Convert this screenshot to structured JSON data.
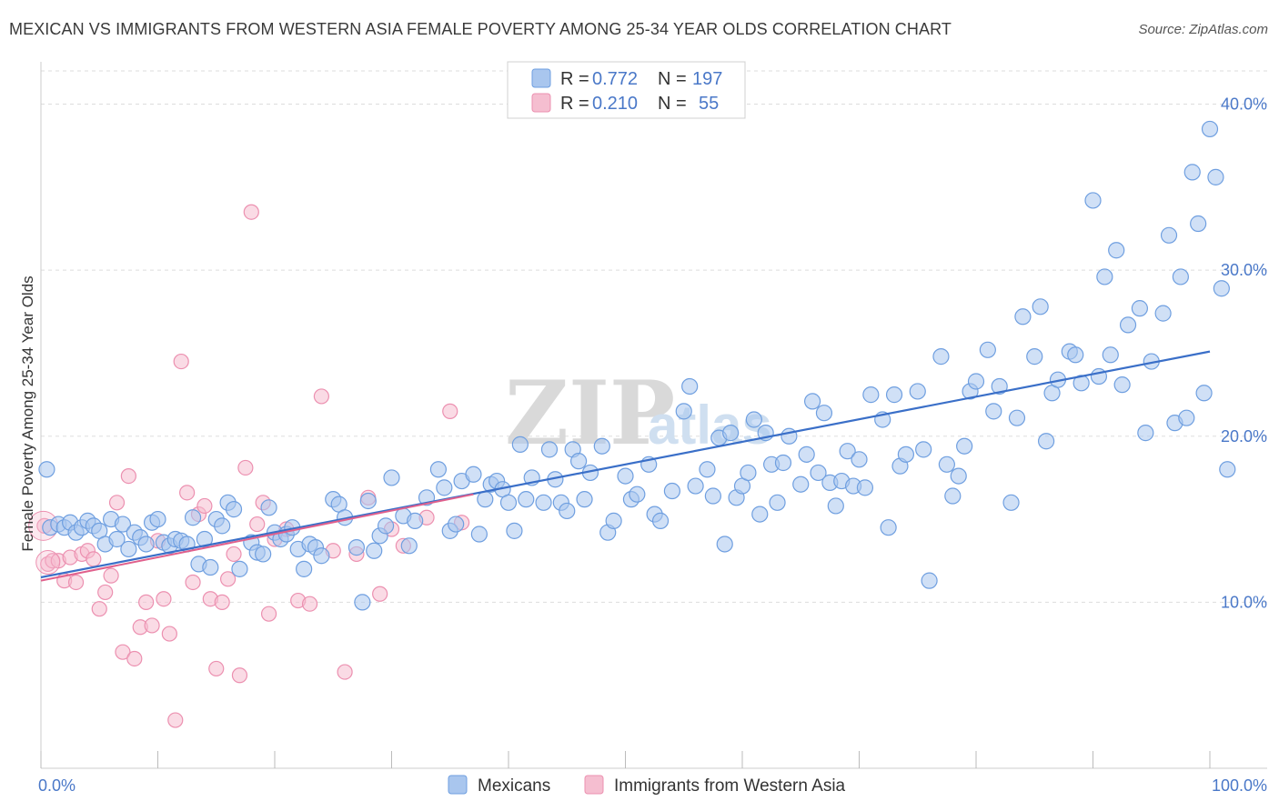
{
  "title": "MEXICAN VS IMMIGRANTS FROM WESTERN ASIA FEMALE POVERTY AMONG 25-34 YEAR OLDS CORRELATION CHART",
  "source": "Source: ZipAtlas.com",
  "watermark": {
    "part1": "ZIP",
    "part2": "atlas"
  },
  "colors": {
    "mexicans_fill": "#a9c6ee",
    "mexicans_stroke": "#6f9fe0",
    "mexicans_line": "#3a6fc8",
    "immigrants_fill": "#f5bed0",
    "immigrants_stroke": "#ec90b0",
    "immigrants_line": "#e0608c",
    "tick": "#4a78c8",
    "grid": "#dddddd"
  },
  "legend": {
    "rows": [
      {
        "r_label": "R = ",
        "r_value": "0.772",
        "n_label": "N = ",
        "n_value": "197"
      },
      {
        "r_label": "R = ",
        "r_value": "0.210",
        "n_label": "N = ",
        "n_value": "55"
      }
    ]
  },
  "bottom_legend": {
    "mexicans": "Mexicans",
    "immigrants": "Immigrants from Western Asia"
  },
  "chart_data": {
    "type": "scatter",
    "title": "MEXICAN VS IMMIGRANTS FROM WESTERN ASIA FEMALE POVERTY AMONG 25-34 YEAR OLDS CORRELATION CHART",
    "xlabel": "",
    "ylabel": "Female Poverty Among 25-34 Year Olds",
    "xlim": [
      0,
      100
    ],
    "ylim": [
      0,
      42
    ],
    "x_tick_labels": [
      "0.0%",
      "100.0%"
    ],
    "y_ticks": [
      10,
      20,
      30,
      40
    ],
    "y_tick_labels": [
      "10.0%",
      "20.0%",
      "30.0%",
      "40.0%"
    ],
    "grid": true,
    "legend_position": "top-center",
    "series": [
      {
        "name": "Mexicans",
        "r": 0.772,
        "n": 197,
        "trend": [
          [
            0,
            11.5
          ],
          [
            100,
            25.1
          ]
        ],
        "points": [
          [
            0.5,
            18
          ],
          [
            0.8,
            14.5
          ],
          [
            1.5,
            14.7
          ],
          [
            2,
            14.5
          ],
          [
            2.5,
            14.8
          ],
          [
            3,
            14.2
          ],
          [
            3.5,
            14.5
          ],
          [
            4,
            14.9
          ],
          [
            4.5,
            14.6
          ],
          [
            5,
            14.3
          ],
          [
            5.5,
            13.5
          ],
          [
            6,
            15
          ],
          [
            6.5,
            13.8
          ],
          [
            7,
            14.7
          ],
          [
            7.5,
            13.2
          ],
          [
            8,
            14.2
          ],
          [
            8.5,
            13.9
          ],
          [
            9,
            13.5
          ],
          [
            9.5,
            14.8
          ],
          [
            10,
            15
          ],
          [
            10.5,
            13.6
          ],
          [
            11,
            13.4
          ],
          [
            11.5,
            13.8
          ],
          [
            12,
            13.7
          ],
          [
            12.5,
            13.5
          ],
          [
            13,
            15.1
          ],
          [
            13.5,
            12.3
          ],
          [
            14,
            13.8
          ],
          [
            14.5,
            12.1
          ],
          [
            15,
            15
          ],
          [
            15.5,
            14.6
          ],
          [
            16,
            16
          ],
          [
            16.5,
            15.6
          ],
          [
            17,
            12
          ],
          [
            18,
            13.6
          ],
          [
            18.5,
            13
          ],
          [
            19,
            12.9
          ],
          [
            19.5,
            15.7
          ],
          [
            20,
            14.2
          ],
          [
            20.5,
            13.8
          ],
          [
            21,
            14.1
          ],
          [
            21.5,
            14.5
          ],
          [
            22,
            13.2
          ],
          [
            22.5,
            12
          ],
          [
            23,
            13.5
          ],
          [
            23.5,
            13.3
          ],
          [
            24,
            12.8
          ],
          [
            25,
            16.2
          ],
          [
            25.5,
            15.9
          ],
          [
            26,
            15.1
          ],
          [
            27,
            13.3
          ],
          [
            27.5,
            10
          ],
          [
            28,
            16.1
          ],
          [
            28.5,
            13.1
          ],
          [
            29,
            14
          ],
          [
            29.5,
            14.6
          ],
          [
            30,
            17.5
          ],
          [
            31,
            15.2
          ],
          [
            31.5,
            13.4
          ],
          [
            32,
            14.9
          ],
          [
            33,
            16.3
          ],
          [
            34,
            18
          ],
          [
            34.5,
            16.9
          ],
          [
            35,
            14.3
          ],
          [
            35.5,
            14.7
          ],
          [
            36,
            17.3
          ],
          [
            37,
            17.7
          ],
          [
            37.5,
            14.1
          ],
          [
            38,
            16.2
          ],
          [
            38.5,
            17.1
          ],
          [
            39,
            17.3
          ],
          [
            39.5,
            16.8
          ],
          [
            40,
            16
          ],
          [
            40.5,
            14.3
          ],
          [
            41,
            19.5
          ],
          [
            41.5,
            16.2
          ],
          [
            42,
            17.5
          ],
          [
            43,
            16
          ],
          [
            43.5,
            19.2
          ],
          [
            44,
            17.4
          ],
          [
            44.5,
            16
          ],
          [
            45,
            15.5
          ],
          [
            45.5,
            19.2
          ],
          [
            46,
            18.5
          ],
          [
            46.5,
            16.2
          ],
          [
            47,
            17.8
          ],
          [
            48,
            19.4
          ],
          [
            48.5,
            14.2
          ],
          [
            49,
            14.9
          ],
          [
            50,
            17.6
          ],
          [
            50.5,
            16.2
          ],
          [
            51,
            16.5
          ],
          [
            52,
            18.3
          ],
          [
            52.5,
            15.3
          ],
          [
            53,
            14.9
          ],
          [
            54,
            16.7
          ],
          [
            55,
            21.5
          ],
          [
            55.5,
            23
          ],
          [
            56,
            17
          ],
          [
            57,
            18
          ],
          [
            57.5,
            16.4
          ],
          [
            58,
            19.9
          ],
          [
            58.5,
            13.5
          ],
          [
            59,
            20.2
          ],
          [
            59.5,
            16.3
          ],
          [
            60,
            17
          ],
          [
            60.5,
            17.8
          ],
          [
            61,
            21
          ],
          [
            61.5,
            15.3
          ],
          [
            62,
            20.2
          ],
          [
            62.5,
            18.3
          ],
          [
            63,
            16
          ],
          [
            63.5,
            18.4
          ],
          [
            64,
            20
          ],
          [
            65,
            17.1
          ],
          [
            65.5,
            18.9
          ],
          [
            66,
            22.1
          ],
          [
            66.5,
            17.8
          ],
          [
            67,
            21.4
          ],
          [
            67.5,
            17.2
          ],
          [
            68,
            15.8
          ],
          [
            68.5,
            17.3
          ],
          [
            69,
            19.1
          ],
          [
            69.5,
            17
          ],
          [
            70,
            18.6
          ],
          [
            70.5,
            16.9
          ],
          [
            71,
            22.5
          ],
          [
            72,
            21
          ],
          [
            72.5,
            14.5
          ],
          [
            73,
            22.5
          ],
          [
            73.5,
            18.2
          ],
          [
            74,
            18.9
          ],
          [
            75,
            22.7
          ],
          [
            75.5,
            19.2
          ],
          [
            76,
            11.3
          ],
          [
            77,
            24.8
          ],
          [
            77.5,
            18.3
          ],
          [
            78,
            16.4
          ],
          [
            78.5,
            17.6
          ],
          [
            79,
            19.4
          ],
          [
            79.5,
            22.7
          ],
          [
            80,
            23.3
          ],
          [
            81,
            25.2
          ],
          [
            81.5,
            21.5
          ],
          [
            82,
            23
          ],
          [
            83,
            16
          ],
          [
            83.5,
            21.1
          ],
          [
            84,
            27.2
          ],
          [
            85,
            24.8
          ],
          [
            85.5,
            27.8
          ],
          [
            86,
            19.7
          ],
          [
            86.5,
            22.6
          ],
          [
            87,
            23.4
          ],
          [
            88,
            25.1
          ],
          [
            88.5,
            24.9
          ],
          [
            89,
            23.2
          ],
          [
            90,
            34.2
          ],
          [
            90.5,
            23.6
          ],
          [
            91,
            29.6
          ],
          [
            91.5,
            24.9
          ],
          [
            92,
            31.2
          ],
          [
            92.5,
            23.1
          ],
          [
            93,
            26.7
          ],
          [
            94,
            27.7
          ],
          [
            94.5,
            20.2
          ],
          [
            95,
            24.5
          ],
          [
            96,
            27.4
          ],
          [
            96.5,
            32.1
          ],
          [
            97,
            20.8
          ],
          [
            97.5,
            29.6
          ],
          [
            98,
            21.1
          ],
          [
            98.5,
            35.9
          ],
          [
            99,
            32.8
          ],
          [
            99.5,
            22.6
          ],
          [
            100,
            38.5
          ],
          [
            100.5,
            35.6
          ],
          [
            101,
            28.9
          ],
          [
            101.5,
            18
          ]
        ]
      },
      {
        "name": "Immigrants from Western Asia",
        "r": 0.21,
        "n": 55,
        "trend": [
          [
            0,
            11.3
          ],
          [
            37,
            16.5
          ]
        ],
        "points": [
          [
            0.3,
            14.6
          ],
          [
            0.6,
            12.3
          ],
          [
            1,
            12.5
          ],
          [
            1.5,
            12.5
          ],
          [
            2,
            11.3
          ],
          [
            2.5,
            12.7
          ],
          [
            3,
            11.2
          ],
          [
            3.5,
            12.9
          ],
          [
            4,
            13.1
          ],
          [
            4.5,
            12.6
          ],
          [
            5,
            9.6
          ],
          [
            5.5,
            10.6
          ],
          [
            6,
            11.6
          ],
          [
            6.5,
            16
          ],
          [
            7,
            7
          ],
          [
            7.5,
            17.6
          ],
          [
            8,
            6.6
          ],
          [
            8.5,
            8.5
          ],
          [
            9,
            10
          ],
          [
            9.5,
            8.6
          ],
          [
            10,
            13.7
          ],
          [
            10.5,
            10.2
          ],
          [
            11,
            8.1
          ],
          [
            11.5,
            2.9
          ],
          [
            12,
            24.5
          ],
          [
            12.5,
            16.6
          ],
          [
            13,
            11.2
          ],
          [
            13.5,
            15.3
          ],
          [
            14,
            15.8
          ],
          [
            14.5,
            10.2
          ],
          [
            15,
            6
          ],
          [
            15.5,
            10
          ],
          [
            16,
            11.4
          ],
          [
            16.5,
            12.9
          ],
          [
            17,
            5.6
          ],
          [
            17.5,
            18.1
          ],
          [
            18,
            33.5
          ],
          [
            18.5,
            14.7
          ],
          [
            19,
            16
          ],
          [
            19.5,
            9.3
          ],
          [
            20,
            13.8
          ],
          [
            21,
            14.4
          ],
          [
            22,
            10.1
          ],
          [
            23,
            9.9
          ],
          [
            24,
            22.4
          ],
          [
            25,
            13.1
          ],
          [
            26,
            5.8
          ],
          [
            27,
            12.9
          ],
          [
            28,
            16.3
          ],
          [
            29,
            10.5
          ],
          [
            30,
            14.4
          ],
          [
            31,
            13.4
          ],
          [
            33,
            15.1
          ],
          [
            35,
            21.5
          ],
          [
            36,
            14.8
          ]
        ]
      }
    ]
  }
}
